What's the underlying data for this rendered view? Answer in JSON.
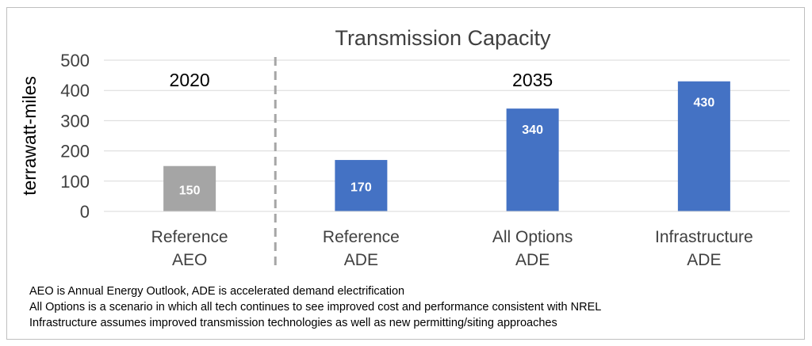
{
  "chart_data": {
    "type": "bar",
    "title": "Transmission Capacity",
    "ylabel": "terrawatt-miles",
    "xlabel": "",
    "ylim": [
      0,
      500
    ],
    "yticks": [
      0,
      100,
      200,
      300,
      400,
      500
    ],
    "grid": true,
    "categories": [
      [
        "Reference",
        "AEO"
      ],
      [
        "Reference",
        "ADE"
      ],
      [
        "All Options",
        "ADE"
      ],
      [
        "Infrastructure",
        "ADE"
      ]
    ],
    "values": [
      150,
      170,
      340,
      430
    ],
    "data_labels": [
      "150",
      "170",
      "340",
      "430"
    ],
    "bar_colors": [
      "#a5a5a5",
      "#4472c4",
      "#4472c4",
      "#4472c4"
    ],
    "group_labels": [
      {
        "text": "2020",
        "categories": [
          0
        ]
      },
      {
        "text": "2035",
        "categories": [
          1,
          2,
          3
        ]
      }
    ]
  },
  "colors": {
    "grid": "#d9d9d9",
    "divider": "#a6a6a6",
    "text": "#404040",
    "label": "#ffffff"
  },
  "notes": [
    "AEO is Annual Energy Outlook, ADE is accelerated demand electrification",
    "All Options is a scenario in which all tech continues to see improved cost and performance consistent with NREL",
    "Infrastructure assumes improved transmission technologies as well as new permitting/siting approaches"
  ]
}
